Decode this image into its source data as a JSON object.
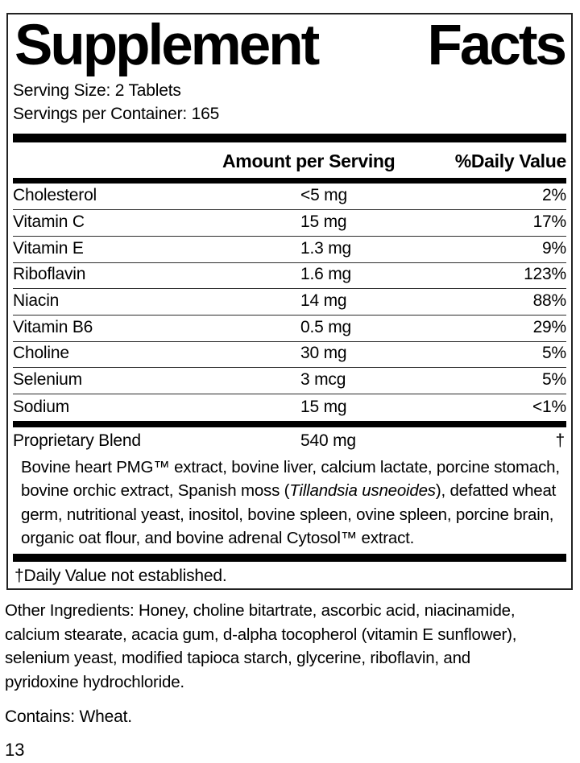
{
  "label": {
    "title": {
      "left": "Supplement",
      "right": "Facts"
    },
    "serving_size": "Serving Size: 2 Tablets",
    "servings_per_container": "Servings per Container: 165",
    "columns": {
      "amount": "Amount per Serving",
      "daily_value": "%Daily Value"
    },
    "rows": [
      {
        "name": "Cholesterol",
        "amount": "<5 mg",
        "dv": "2%"
      },
      {
        "name": "Vitamin C",
        "amount": "15 mg",
        "dv": "17%"
      },
      {
        "name": "Vitamin E",
        "amount": "1.3 mg",
        "dv": "9%"
      },
      {
        "name": "Riboflavin",
        "amount": "1.6 mg",
        "dv": "123%"
      },
      {
        "name": "Niacin",
        "amount": "14 mg",
        "dv": "88%"
      },
      {
        "name": "Vitamin B6",
        "amount": "0.5 mg",
        "dv": "29%"
      },
      {
        "name": "Choline",
        "amount": "30 mg",
        "dv": "5%"
      },
      {
        "name": "Selenium",
        "amount": "3 mcg",
        "dv": "5%"
      },
      {
        "name": "Sodium",
        "amount": "15 mg",
        "dv": "<1%"
      }
    ],
    "proprietary_blend": {
      "name": "Proprietary Blend",
      "amount": "540 mg",
      "dv": "†",
      "description_segments": [
        {
          "text": "Bovine heart PMG™ extract, bovine liver, calcium lactate, porcine stomach,\nbovine orchic extract, Spanish moss (",
          "italic": false
        },
        {
          "text": "Tillandsia usneoides",
          "italic": true
        },
        {
          "text": "), defatted wheat\ngerm, nutritional yeast, inositol, bovine spleen, ovine spleen, porcine brain,\norganic oat flour, and bovine adrenal Cytosol™ extract.",
          "italic": false
        }
      ]
    },
    "footnote": "†Daily Value not established."
  },
  "below": {
    "other_ingredients": "Other Ingredients: Honey, choline bitartrate, ascorbic acid, niacinamide,\ncalcium stearate, acacia gum, d-alpha tocopherol (vitamin E sunflower),\nselenium yeast, modified tapioca starch, glycerine, riboflavin, and\npyridoxine hydrochloride.",
    "contains": "Contains: Wheat.",
    "page_number": "13"
  },
  "colors": {
    "text": "#000000",
    "bars": "#000000",
    "background": "#ffffff"
  }
}
